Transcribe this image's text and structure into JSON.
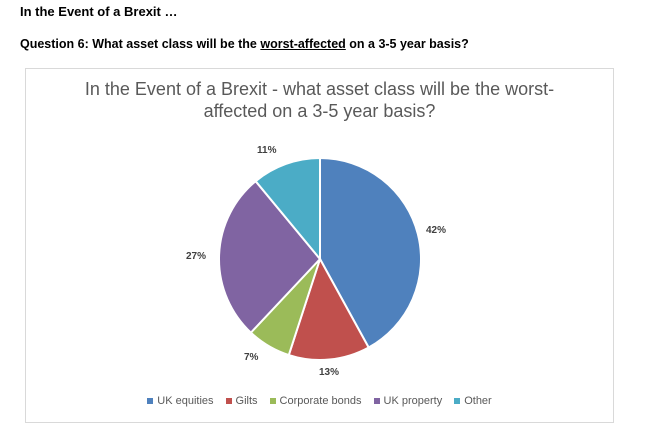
{
  "page": {
    "heading": "In the Event of a Brexit …",
    "question_prefix": "Question 6: What asset class will be the ",
    "question_underlined": "worst-affected",
    "question_suffix": " on a 3-5 year basis?"
  },
  "chart_data": {
    "type": "pie",
    "title": "In the Event of a Brexit - what asset class will be the worst-affected on a 3-5 year basis?",
    "title_line1": "In the Event of a Brexit - what asset class will be the worst-",
    "title_line2": "affected on a 3-5 year basis?",
    "categories": [
      "UK equities",
      "Gilts",
      "Corporate bonds",
      "UK property",
      "Other"
    ],
    "values": [
      42,
      13,
      7,
      27,
      11
    ],
    "labels": [
      "42%",
      "13%",
      "7%",
      "27%",
      "11%"
    ],
    "colors": [
      "#4f81bd",
      "#c0504d",
      "#9bbb59",
      "#8064a2",
      "#4bacc6"
    ],
    "legend_position": "bottom",
    "start_angle": "12 o'clock, clockwise"
  }
}
